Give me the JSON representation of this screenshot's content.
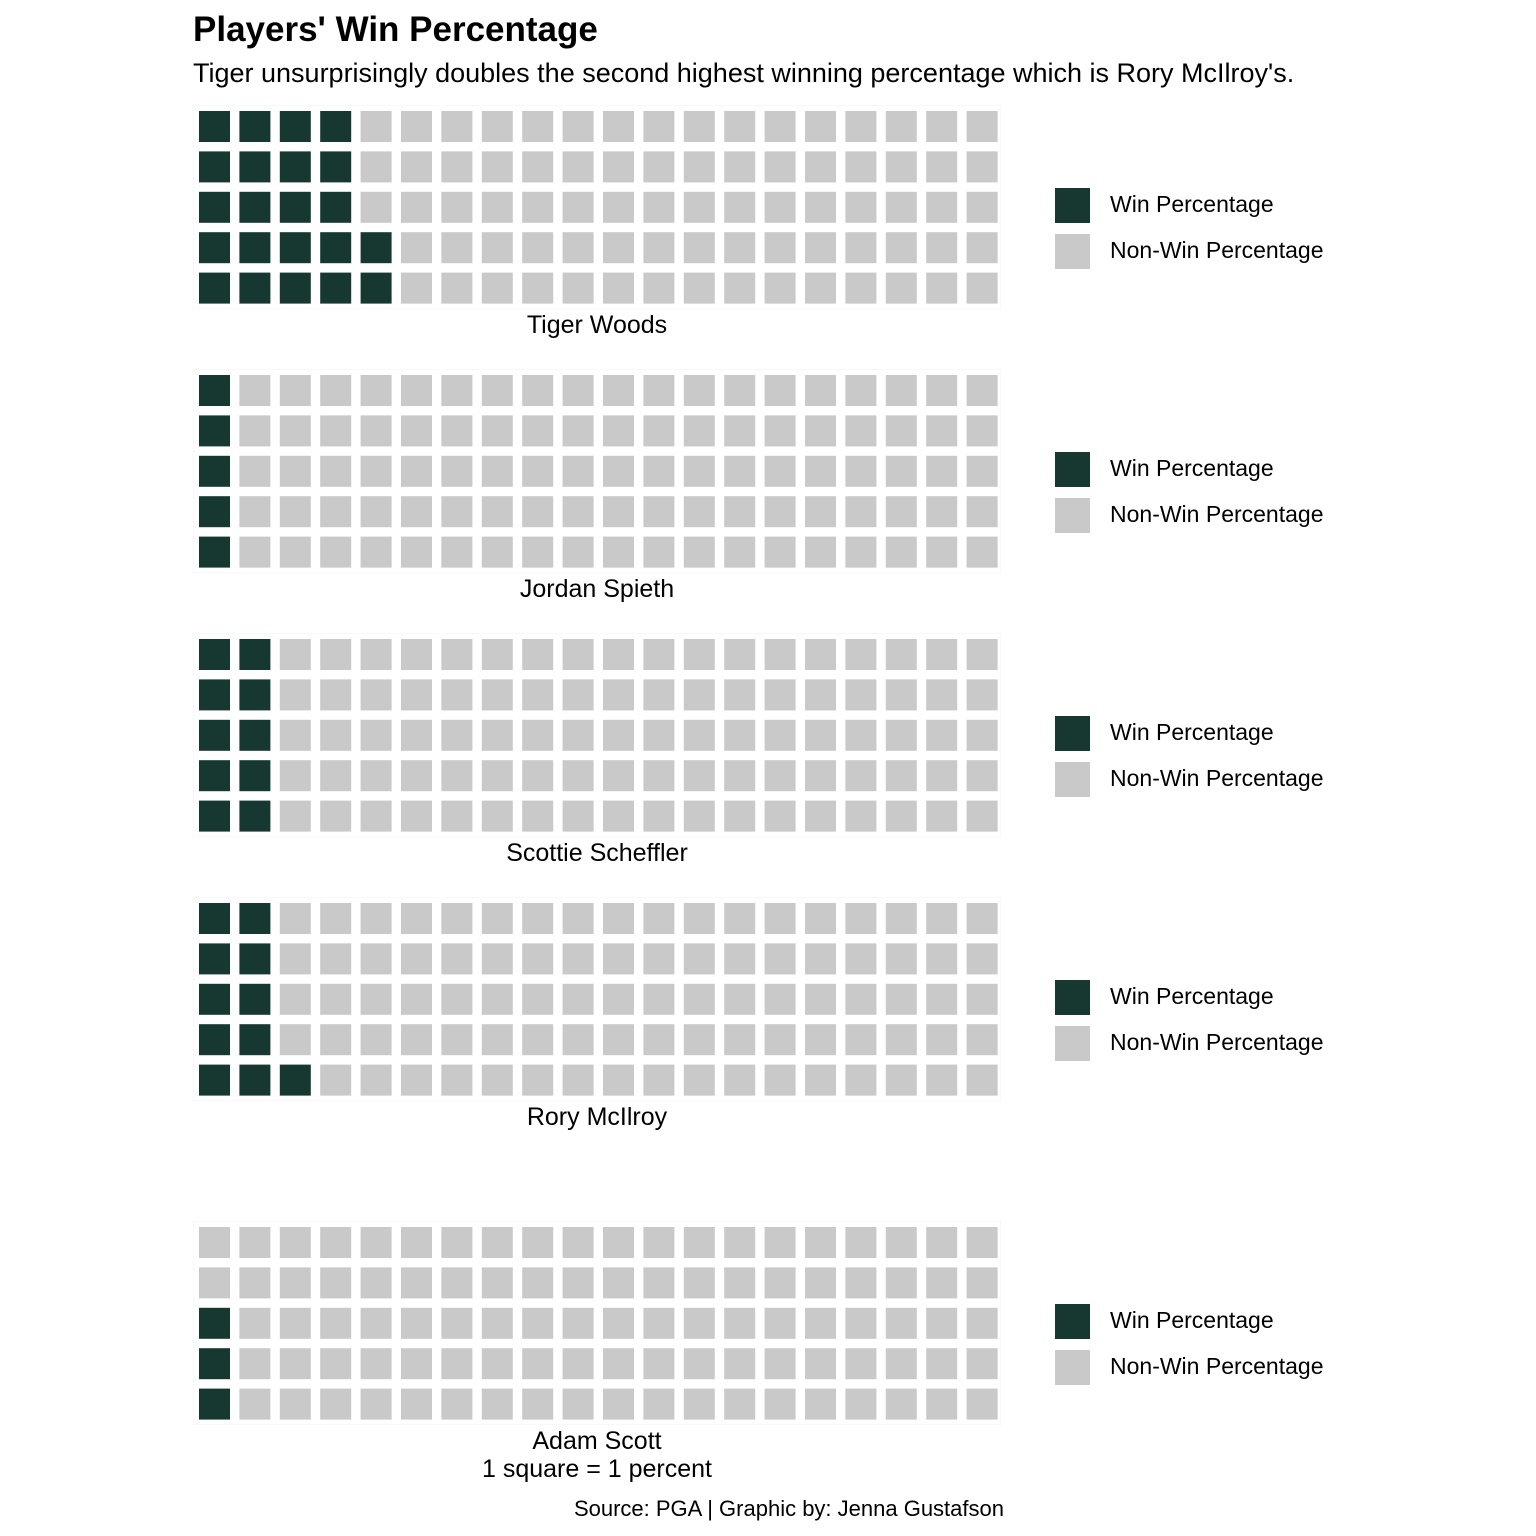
{
  "title": "Players' Win Percentage",
  "subtitle": "Tiger unsurprisingly doubles the second highest winning percentage which is Rory McIlroy's.",
  "caption": "1 square = 1 percent",
  "source": "Source: PGA | Graphic by: Jenna Gustafson",
  "colors": {
    "win": "#173731",
    "non_win": "#c9c9c9"
  },
  "legend": [
    "Win Percentage",
    "Non-Win Percentage"
  ],
  "chart_data": {
    "type": "waffle",
    "rows": 5,
    "columns": 20,
    "unit": "1 square = 1 percent",
    "categories": [
      "Win Percentage",
      "Non-Win Percentage"
    ],
    "players": [
      {
        "name": "Tiger Woods",
        "win_percentage": 22,
        "non_win_percentage": 78
      },
      {
        "name": "Jordan Spieth",
        "win_percentage": 5,
        "non_win_percentage": 95
      },
      {
        "name": "Scottie Scheffler",
        "win_percentage": 10,
        "non_win_percentage": 90
      },
      {
        "name": "Rory McIlroy",
        "win_percentage": 11,
        "non_win_percentage": 89
      },
      {
        "name": "Adam Scott",
        "win_percentage": 3,
        "non_win_percentage": 97
      }
    ]
  }
}
